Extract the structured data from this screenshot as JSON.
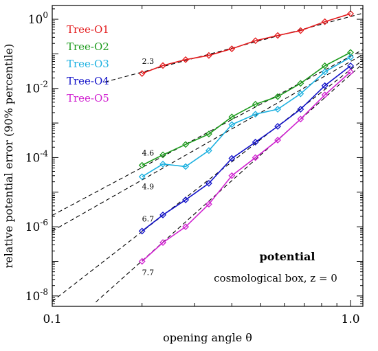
{
  "chart_data": {
    "type": "line",
    "title": "",
    "xlabel": "opening angle θ",
    "ylabel": "relative potential error (90% percentile)",
    "xscale": "log",
    "yscale": "log",
    "xlim": [
      0.1,
      1.1
    ],
    "ylim": [
      5e-09,
      2.5
    ],
    "x_ticks": [
      {
        "value": 0.1,
        "label": "0.1"
      },
      {
        "value": 1.0,
        "label": "1.0"
      }
    ],
    "y_ticks": [
      {
        "value": 1e-08,
        "base": "10",
        "exp": "-8"
      },
      {
        "value": 1e-06,
        "base": "10",
        "exp": "-6"
      },
      {
        "value": 0.0001,
        "base": "10",
        "exp": "-4"
      },
      {
        "value": 0.01,
        "base": "10",
        "exp": "-2"
      },
      {
        "value": 1,
        "base": "10",
        "exp": "0"
      }
    ],
    "grid": false,
    "legend": "top-left",
    "x": [
      0.2,
      0.235,
      0.28,
      0.335,
      0.4,
      0.48,
      0.57,
      0.68,
      0.82,
      1.0
    ],
    "series": [
      {
        "name": "Tree-O1",
        "color": "#e31a1c",
        "values": [
          0.027,
          0.046,
          0.068,
          0.09,
          0.14,
          0.24,
          0.34,
          0.47,
          0.85,
          1.45
        ]
      },
      {
        "name": "Tree-O2",
        "color": "#1a9a1a",
        "values": [
          6e-05,
          0.00012,
          0.00024,
          0.00048,
          0.0015,
          0.0035,
          0.0058,
          0.014,
          0.045,
          0.11
        ]
      },
      {
        "name": "Tree-O3",
        "color": "#1ab0e0",
        "values": [
          2.8e-05,
          6.5e-05,
          5.5e-05,
          0.00016,
          0.0009,
          0.0018,
          0.0025,
          0.007,
          0.03,
          0.08
        ]
      },
      {
        "name": "Tree-O4",
        "color": "#1010c8",
        "values": [
          7.5e-07,
          2.2e-06,
          6e-06,
          1.8e-05,
          9.5e-05,
          0.00028,
          0.0008,
          0.0025,
          0.012,
          0.045
        ]
      },
      {
        "name": "Tree-O5",
        "color": "#d020d0",
        "values": [
          1e-07,
          3.5e-07,
          1e-06,
          4.5e-06,
          3e-05,
          0.0001,
          0.00032,
          0.0013,
          0.0065,
          0.03
        ]
      }
    ],
    "reference_lines": [
      {
        "label": "2.3",
        "slope": 2.3,
        "anchor": [
          1.0,
          1.2
        ],
        "x_from": 0.15
      },
      {
        "label": "4.6",
        "slope": 4.6,
        "anchor": [
          1.0,
          0.085
        ],
        "x_from": 0.1
      },
      {
        "label": "4.9",
        "slope": 4.9,
        "anchor": [
          1.0,
          0.06
        ],
        "x_from": 0.1
      },
      {
        "label": "6.7",
        "slope": 6.7,
        "anchor": [
          1.0,
          0.035
        ],
        "x_from": 0.1
      },
      {
        "label": "7.7",
        "slope": 7.7,
        "anchor": [
          1.0,
          0.025
        ],
        "x_from": 0.14
      }
    ],
    "annotations": [
      {
        "text": "potential",
        "style": "bold"
      },
      {
        "text": "cosmological box, z = 0",
        "style": "normal"
      }
    ]
  }
}
